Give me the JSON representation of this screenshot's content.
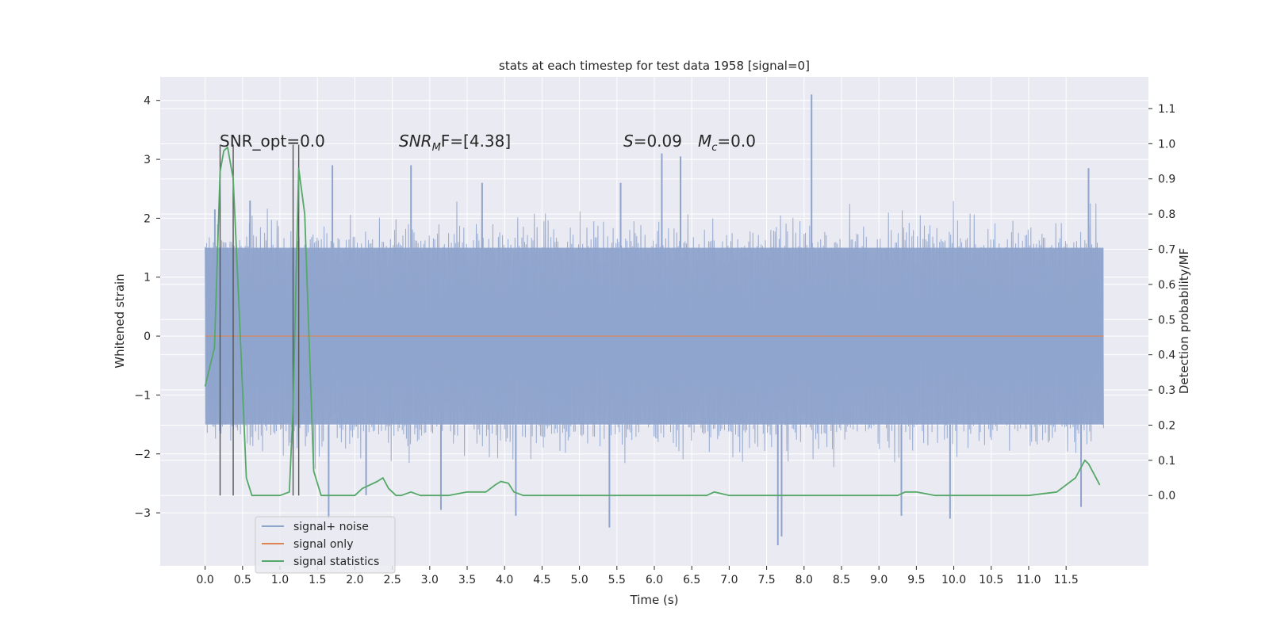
{
  "chart_data": {
    "type": "line",
    "title": "stats at each timestep for test data 1958 [signal=0]",
    "xlabel": "Time (s)",
    "ylabel": "Whitened strain",
    "ylabel_right": "Detection probability/MF",
    "xlim": [
      -0.6,
      12.6
    ],
    "ylim": [
      -3.9,
      4.4
    ],
    "ylim_right": [
      -0.2,
      1.19
    ],
    "x_ticks": [
      "0.0",
      "0.5",
      "1.0",
      "1.5",
      "2.0",
      "2.5",
      "3.0",
      "3.5",
      "4.0",
      "4.5",
      "5.0",
      "5.5",
      "6.0",
      "6.5",
      "7.0",
      "7.5",
      "8.0",
      "8.5",
      "9.0",
      "9.5",
      "10.0",
      "10.5",
      "11.0",
      "11.5"
    ],
    "y_ticks": [
      "4",
      "3",
      "2",
      "1",
      "0",
      "−1",
      "−2",
      "−3"
    ],
    "y_ticks_right": [
      "1.1",
      "1.0",
      "0.9",
      "0.8",
      "0.7",
      "0.6",
      "0.5",
      "0.4",
      "0.3",
      "0.2",
      "0.1",
      "0.0"
    ],
    "grid": true,
    "legend_position": "lower-left",
    "annotations": {
      "snr_opt": "SNR_opt=0.0",
      "snr_mf_main": "SNR",
      "snr_mf_sub": "M",
      "snr_mf_rest": "F=[4.38]",
      "s_main": "S",
      "s_rest": "=0.09",
      "mc_main": "M",
      "mc_sub": "c",
      "mc_rest": "=0.0"
    },
    "series": [
      {
        "name": "signal+ noise",
        "color": "#8fa4cc",
        "axis": "left",
        "x_range": [
          0.0,
          12.0
        ],
        "envelope_upper": 1.5,
        "envelope_lower": -1.5,
        "spikes": [
          [
            0.13,
            2.15
          ],
          [
            0.6,
            2.3
          ],
          [
            1.7,
            2.9
          ],
          [
            2.75,
            2.9
          ],
          [
            3.7,
            2.6
          ],
          [
            5.55,
            2.6
          ],
          [
            6.1,
            3.1
          ],
          [
            6.35,
            3.05
          ],
          [
            8.1,
            4.1
          ],
          [
            11.8,
            2.85
          ],
          [
            1.65,
            -3.1
          ],
          [
            2.15,
            -2.7
          ],
          [
            3.15,
            -2.95
          ],
          [
            4.15,
            -3.05
          ],
          [
            5.4,
            -3.25
          ],
          [
            7.65,
            -3.55
          ],
          [
            7.7,
            -3.4
          ],
          [
            9.3,
            -3.05
          ],
          [
            9.95,
            -3.1
          ],
          [
            11.7,
            -2.9
          ]
        ]
      },
      {
        "name": "signal only",
        "color": "#dd8452",
        "axis": "left",
        "x": [
          0.0,
          12.0
        ],
        "values": [
          0.0,
          0.0
        ]
      },
      {
        "name": "signal statistics",
        "color": "#55a868",
        "axis": "right",
        "x": [
          0.0,
          0.125,
          0.2,
          0.25,
          0.3,
          0.375,
          0.45,
          0.55,
          0.625,
          1.0,
          1.125,
          1.175,
          1.25,
          1.33,
          1.45,
          1.55,
          1.65,
          2.0,
          2.1,
          2.2,
          2.3,
          2.375,
          2.45,
          2.55,
          2.62,
          2.75,
          2.875,
          3.0,
          3.25,
          3.5,
          3.75,
          3.875,
          3.95,
          4.05,
          4.125,
          4.25,
          4.5,
          5.0,
          6.0,
          6.7,
          6.8,
          7.0,
          8.0,
          9.0,
          9.25,
          9.35,
          9.5,
          9.75,
          10.0,
          10.5,
          10.75,
          11.0,
          11.375,
          11.5,
          11.625,
          11.75,
          11.8,
          11.875,
          11.95
        ],
        "values": [
          0.31,
          0.42,
          0.92,
          0.98,
          0.99,
          0.9,
          0.55,
          0.05,
          0.0,
          0.0,
          0.01,
          0.25,
          0.93,
          0.8,
          0.07,
          0.0,
          0.0,
          0.0,
          0.02,
          0.03,
          0.04,
          0.05,
          0.02,
          0.0,
          0.0,
          0.01,
          0.0,
          0.0,
          0.0,
          0.01,
          0.01,
          0.03,
          0.04,
          0.035,
          0.01,
          0.0,
          0.0,
          0.0,
          0.0,
          0.0,
          0.01,
          0.0,
          0.0,
          0.0,
          0.0,
          0.01,
          0.01,
          0.0,
          0.0,
          0.0,
          0.0,
          0.0,
          0.01,
          0.03,
          0.05,
          0.1,
          0.09,
          0.06,
          0.03
        ]
      }
    ],
    "vlines": [
      0.2,
      0.375,
      1.175,
      1.25
    ]
  }
}
